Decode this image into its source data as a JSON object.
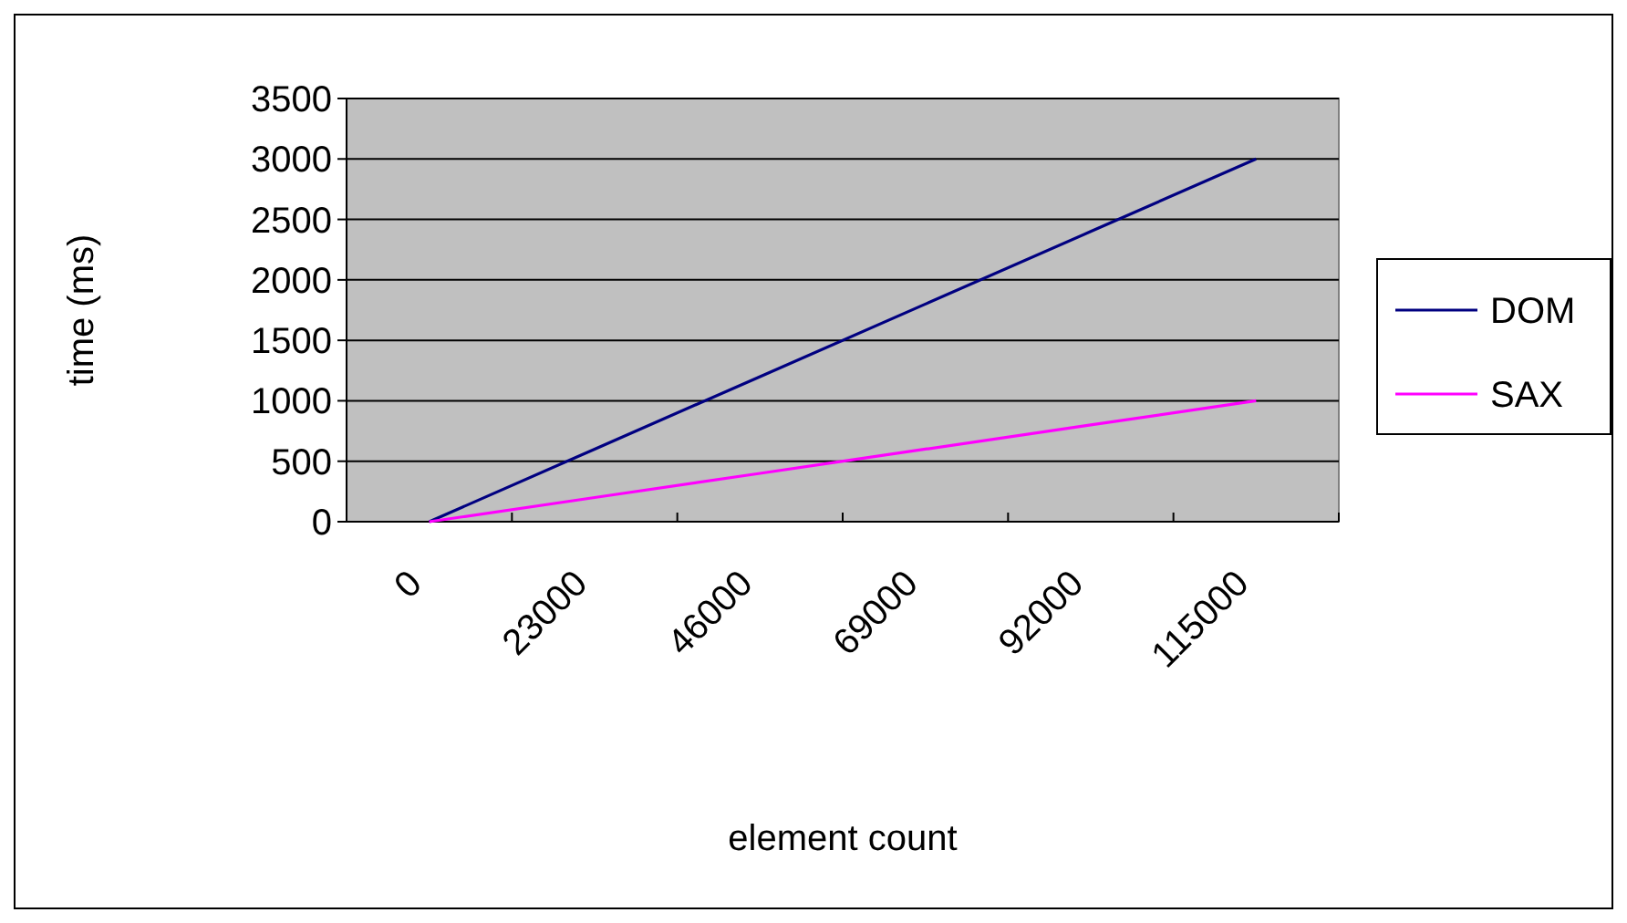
{
  "chart_data": {
    "type": "line",
    "xlabel": "element count",
    "ylabel": "time (ms)",
    "categories": [
      "0",
      "23000",
      "46000",
      "69000",
      "92000",
      "115000"
    ],
    "series": [
      {
        "name": "DOM",
        "color": "#000080",
        "values": [
          0,
          600,
          1200,
          1800,
          2400,
          3000
        ]
      },
      {
        "name": "SAX",
        "color": "#ff00ff",
        "values": [
          0,
          200,
          400,
          600,
          800,
          1000
        ]
      }
    ],
    "ylim": [
      0,
      3500
    ],
    "yticks": [
      0,
      500,
      1000,
      1500,
      2000,
      2500,
      3000,
      3500
    ],
    "grid": "y",
    "legend": "right",
    "marker": "none",
    "line_style": "solid"
  }
}
